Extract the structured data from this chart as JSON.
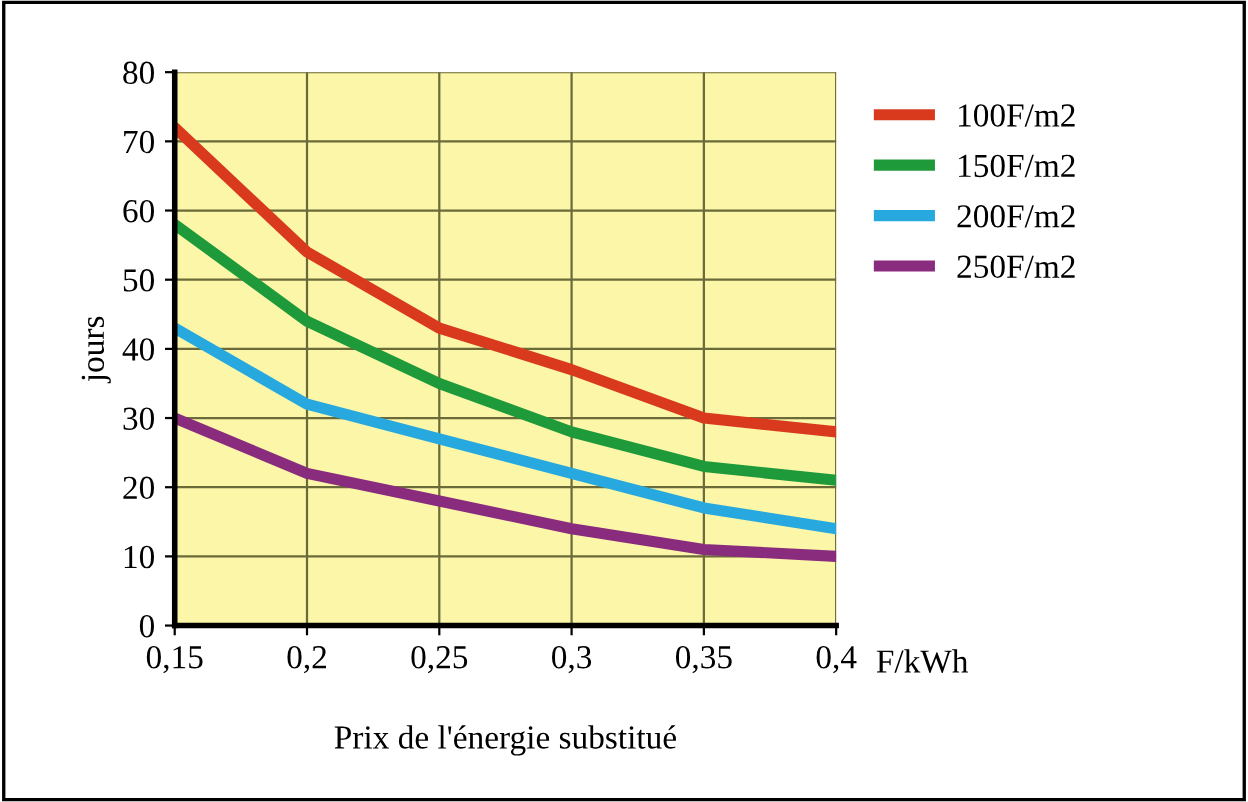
{
  "chart_data": {
    "type": "line",
    "ylabel": "jours",
    "xlabel": "Prix de l'énergie substitué",
    "annotations": [
      "F/kWh"
    ],
    "x": [
      0.15,
      0.2,
      0.25,
      0.3,
      0.35,
      0.4
    ],
    "series": [
      {
        "name": "100F/m2",
        "color": "#d93a1e",
        "values": [
          72,
          54,
          43,
          37,
          30,
          28
        ]
      },
      {
        "name": "150F/m2",
        "color": "#1f9a3a",
        "values": [
          58,
          44,
          35,
          28,
          23,
          21
        ]
      },
      {
        "name": "200F/m2",
        "color": "#27a9df",
        "values": [
          43,
          32,
          27,
          22,
          17,
          14
        ]
      },
      {
        "name": "250F/m2",
        "color": "#8a2c7e",
        "values": [
          30,
          22,
          18,
          14,
          11,
          10
        ]
      }
    ],
    "xlim": [
      0.15,
      0.4
    ],
    "ylim": [
      0,
      80
    ],
    "xticks": [
      {
        "value": 0.15,
        "label": "0,15"
      },
      {
        "value": 0.2,
        "label": "0,2"
      },
      {
        "value": 0.25,
        "label": "0,25"
      },
      {
        "value": 0.3,
        "label": "0,3"
      },
      {
        "value": 0.35,
        "label": "0,35"
      },
      {
        "value": 0.4,
        "label": "0,4"
      }
    ],
    "yticks": [
      0,
      10,
      20,
      30,
      40,
      50,
      60,
      70,
      80
    ],
    "grid": true,
    "legend": "right",
    "marker": "none",
    "line_style": "solid"
  }
}
